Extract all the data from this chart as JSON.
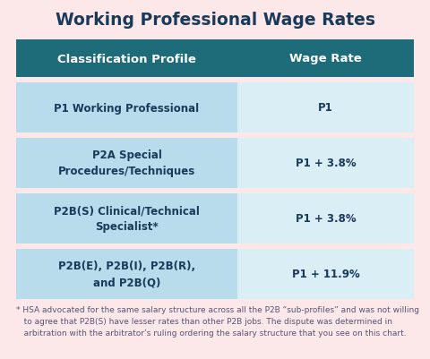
{
  "title": "Working Professional Wage Rates",
  "title_fontsize": 13.5,
  "title_color": "#1a3a5c",
  "background_color": "#fce8e8",
  "header_bg_color": "#1e6b7a",
  "header_text_color": "#ffffff",
  "header_labels": [
    "Classification Profile",
    "Wage Rate"
  ],
  "row_bg_color_left": "#b8dcec",
  "row_bg_color_right": "#daeef6",
  "rows": [
    {
      "profile": "P1 Working Professional",
      "rate": "P1"
    },
    {
      "profile": "P2A Special\nProcedures/Techniques",
      "rate": "P1 + 3.8%"
    },
    {
      "profile": "P2B(S) Clinical/Technical\nSpecialist*",
      "rate": "P1 + 3.8%"
    },
    {
      "profile": "P2B(E), P2B(I), P2B(R),\nand P2B(Q)",
      "rate": "P1 + 11.9%"
    }
  ],
  "footnote_line1": "* HSA advocated for the same salary structure across all the P2B “sub-profiles” and was not willing",
  "footnote_line2": "   to agree that P2B(S) have lesser rates than other P2B jobs. The dispute was determined in",
  "footnote_line3": "   arbitration with the arbitrator’s ruling ordering the salary structure that you see on this chart.",
  "footnote_fontsize": 6.5,
  "footnote_color": "#555577",
  "row_text_color": "#1a3a5c",
  "row_fontsize": 8.5,
  "header_fontsize": 9.5
}
